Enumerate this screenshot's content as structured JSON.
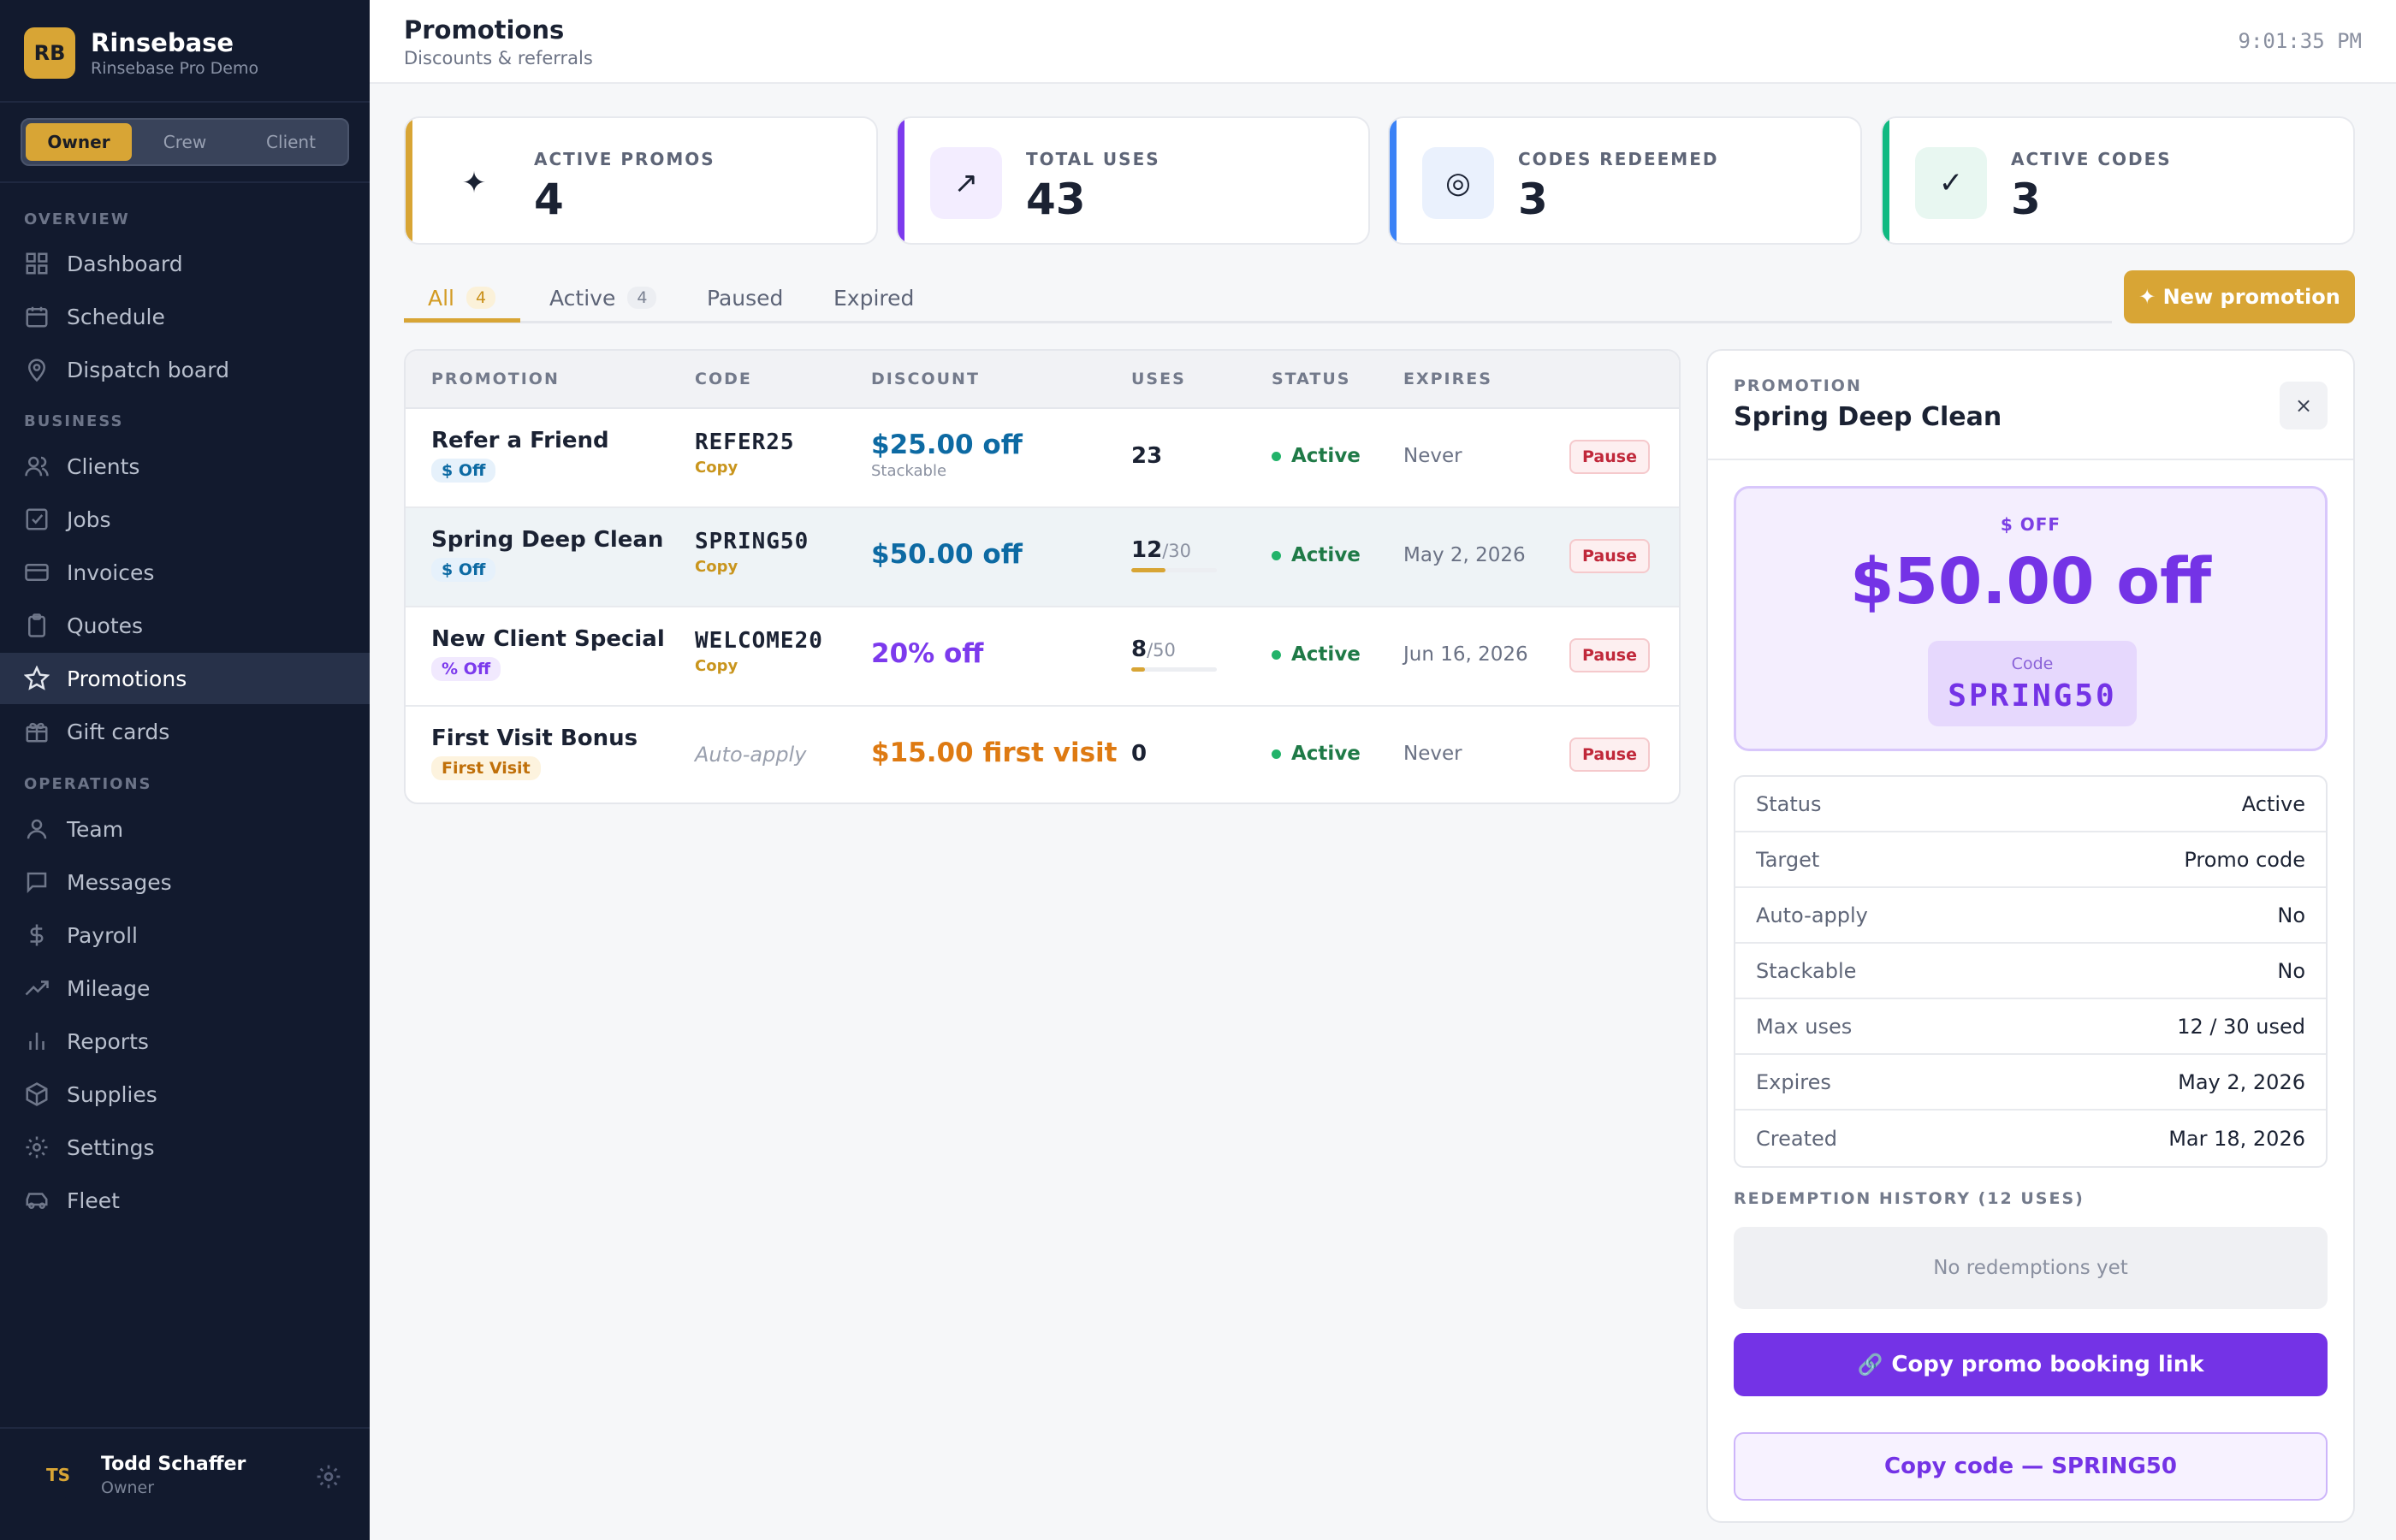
{
  "brand": {
    "initials": "RB",
    "name": "Rinsebase",
    "subtitle": "Rinsebase Pro Demo"
  },
  "roles": [
    {
      "label": "Owner",
      "active": true
    },
    {
      "label": "Crew",
      "active": false
    },
    {
      "label": "Client",
      "active": false
    }
  ],
  "nav": {
    "sections": {
      "overview": "OVERVIEW",
      "business": "BUSINESS",
      "operations": "OPERATIONS"
    },
    "items": [
      {
        "label": "Dashboard",
        "icon": "grid-icon"
      },
      {
        "label": "Schedule",
        "icon": "calendar-icon"
      },
      {
        "label": "Dispatch board",
        "icon": "map-pin-icon"
      },
      {
        "label": "Clients",
        "icon": "users-icon"
      },
      {
        "label": "Jobs",
        "icon": "checkbox-icon"
      },
      {
        "label": "Invoices",
        "icon": "credit-card-icon"
      },
      {
        "label": "Quotes",
        "icon": "clipboard-icon"
      },
      {
        "label": "Promotions",
        "icon": "star-icon",
        "active": true
      },
      {
        "label": "Gift cards",
        "icon": "gift-icon"
      },
      {
        "label": "Team",
        "icon": "user-icon"
      },
      {
        "label": "Messages",
        "icon": "message-icon"
      },
      {
        "label": "Payroll",
        "icon": "dollar-icon"
      },
      {
        "label": "Mileage",
        "icon": "trending-icon"
      },
      {
        "label": "Reports",
        "icon": "bar-chart-icon"
      },
      {
        "label": "Supplies",
        "icon": "box-icon"
      },
      {
        "label": "Settings",
        "icon": "gear-icon"
      },
      {
        "label": "Fleet",
        "icon": "car-icon"
      }
    ]
  },
  "user": {
    "initials": "TS",
    "name": "Todd Schaffer",
    "role": "Owner"
  },
  "header": {
    "title": "Promotions",
    "subtitle": "Discounts & referrals",
    "clock": "9:01:35 PM"
  },
  "stats": [
    {
      "label": "ACTIVE PROMOS",
      "value": "4",
      "icon": "sparkle-icon",
      "glyph": "✦",
      "accent": "#d8a535",
      "icon_bg": "#ffffff",
      "icon_color": "#1b2233"
    },
    {
      "label": "TOTAL USES",
      "value": "43",
      "icon": "arrow-up-right-icon",
      "glyph": "↗",
      "accent": "#7c3aed",
      "icon_bg": "#f3edff",
      "icon_color": "#1b2233"
    },
    {
      "label": "CODES REDEEMED",
      "value": "3",
      "icon": "target-icon",
      "glyph": "◎",
      "accent": "#3b82f6",
      "icon_bg": "#eaf1fd",
      "icon_color": "#1b2233"
    },
    {
      "label": "ACTIVE CODES",
      "value": "3",
      "icon": "check-icon",
      "glyph": "✓",
      "accent": "#10b981",
      "icon_bg": "#e8f7f1",
      "icon_color": "#1b2233"
    }
  ],
  "tabs": [
    {
      "label": "All",
      "count": "4",
      "active": true
    },
    {
      "label": "Active",
      "count": "4"
    },
    {
      "label": "Paused"
    },
    {
      "label": "Expired"
    }
  ],
  "new_promo_label": "✦ New promotion",
  "table": {
    "columns": [
      "PROMOTION",
      "CODE",
      "DISCOUNT",
      "USES",
      "STATUS",
      "EXPIRES"
    ],
    "rows": [
      {
        "name": "Refer a Friend",
        "type": "$ Off",
        "type_style": "blue",
        "code": "REFER25",
        "copy": "Copy",
        "discount": "$25.00 off",
        "discount_color": "#0d6aa3",
        "discount_note": "Stackable",
        "uses": "23",
        "uses_max": "",
        "uses_fraction": null,
        "status": "Active",
        "expires": "Never",
        "action": "Pause"
      },
      {
        "name": "Spring Deep Clean",
        "type": "$ Off",
        "type_style": "blue",
        "code": "SPRING50",
        "copy": "Copy",
        "discount": "$50.00 off",
        "discount_color": "#0d6aa3",
        "discount_note": "",
        "uses": "12",
        "uses_max": "/30",
        "uses_fraction": 0.4,
        "status": "Active",
        "expires": "May 2, 2026",
        "action": "Pause",
        "selected": true
      },
      {
        "name": "New Client Special",
        "type": "% Off",
        "type_style": "purple",
        "code": "WELCOME20",
        "copy": "Copy",
        "discount": "20% off",
        "discount_color": "#7c3aed",
        "discount_note": "",
        "uses": "8",
        "uses_max": "/50",
        "uses_fraction": 0.16,
        "status": "Active",
        "expires": "Jun 16, 2026",
        "action": "Pause"
      },
      {
        "name": "First Visit Bonus",
        "type": "First Visit",
        "type_style": "amber",
        "code": "",
        "auto_apply": "Auto-apply",
        "discount": "$15.00 first visit",
        "discount_color": "#de7a12",
        "discount_note": "",
        "uses": "0",
        "uses_max": "",
        "uses_fraction": null,
        "status": "Active",
        "expires": "Never",
        "action": "Pause"
      }
    ]
  },
  "detail": {
    "kicker": "PROMOTION",
    "title": "Spring Deep Clean",
    "close": "×",
    "offer": {
      "type": "$ OFF",
      "amount": "$50.00 off",
      "code_label": "Code",
      "code": "SPRING50"
    },
    "props": [
      {
        "key": "Status",
        "value": "Active"
      },
      {
        "key": "Target",
        "value": "Promo code"
      },
      {
        "key": "Auto-apply",
        "value": "No"
      },
      {
        "key": "Stackable",
        "value": "No"
      },
      {
        "key": "Max uses",
        "value": "12 / 30 used"
      },
      {
        "key": "Expires",
        "value": "May 2, 2026"
      },
      {
        "key": "Created",
        "value": "Mar 18, 2026"
      }
    ],
    "history_label": "REDEMPTION HISTORY (12 USES)",
    "history_empty": "No redemptions yet",
    "copy_link_label": "Copy promo booking link",
    "copy_code_label": "Copy code — SPRING50"
  }
}
